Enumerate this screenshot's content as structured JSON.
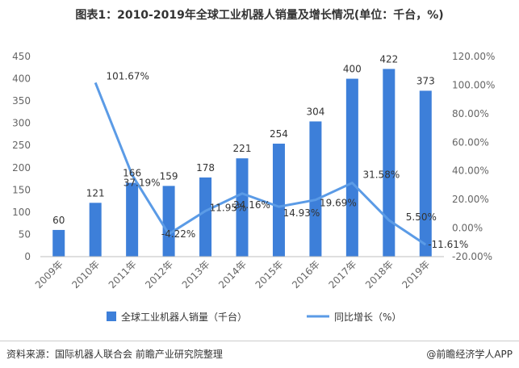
{
  "title": "图表1：2010-2019年全球工业机器人销量及增长情况(单位：千台，%)",
  "footer": {
    "source": "资料来源：国际机器人联合会 前瞻产业研究院整理",
    "brand": "@前瞻经济学人APP"
  },
  "chart_data": {
    "type": "bar+line",
    "categories": [
      "2009年",
      "2010年",
      "2011年",
      "2012年",
      "2013年",
      "2014年",
      "2015年",
      "2016年",
      "2017年",
      "2018年",
      "2019年"
    ],
    "series": [
      {
        "name": "全球工业机器人销量（千台）",
        "type": "bar",
        "axis": "left",
        "color": "#3d7fd9",
        "values": [
          60,
          121,
          166,
          159,
          178,
          221,
          254,
          304,
          400,
          422,
          373
        ],
        "labels": [
          "60",
          "121",
          "166",
          "159",
          "178",
          "221",
          "254",
          "304",
          "400",
          "422",
          "373"
        ]
      },
      {
        "name": "同比增长（%）",
        "type": "line",
        "axis": "right",
        "color": "#5b9be6",
        "values": [
          null,
          101.67,
          37.19,
          -4.22,
          11.95,
          24.16,
          14.93,
          19.69,
          31.58,
          5.5,
          -11.61
        ],
        "labels": [
          "",
          "101.67%",
          "37.19%",
          "-4.22%",
          "11.95%",
          "24.16%",
          "14.93%",
          "19.69%",
          "31.58%",
          "5.50%",
          "-11.61%"
        ]
      }
    ],
    "y_left": {
      "min": 0,
      "max": 450,
      "ticks": [
        0,
        50,
        100,
        150,
        200,
        250,
        300,
        350,
        400,
        450
      ],
      "tick_labels": [
        "0",
        "50",
        "100",
        "150",
        "200",
        "250",
        "300",
        "350",
        "400",
        "450"
      ]
    },
    "y_right": {
      "min": -20,
      "max": 120,
      "ticks": [
        -20,
        0,
        20,
        40,
        60,
        80,
        100,
        120
      ],
      "tick_labels": [
        "-20.00%",
        "0.00%",
        "20.00%",
        "40.00%",
        "60.00%",
        "80.00%",
        "100.00%",
        "120.00%"
      ]
    },
    "grid": false,
    "legend": "bottom"
  }
}
